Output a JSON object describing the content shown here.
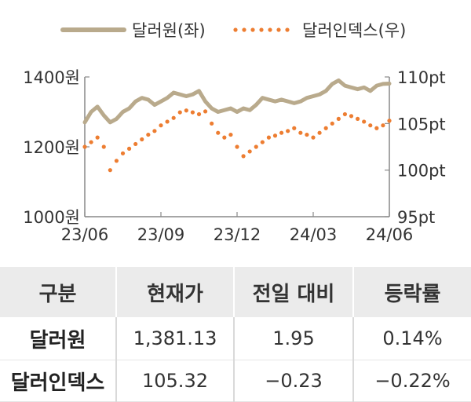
{
  "chart_data": {
    "type": "line",
    "x_ticks": [
      "23/06",
      "23/09",
      "23/12",
      "24/03",
      "24/06"
    ],
    "y_left": {
      "ylim": [
        1000,
        1400
      ],
      "ticks": [
        "1400원",
        "1200원",
        "1000원"
      ]
    },
    "y_right": {
      "ylim": [
        95,
        110
      ],
      "ticks": [
        "110pt",
        "105pt",
        "100pt",
        "95pt"
      ]
    },
    "legend_position": "top",
    "series": [
      {
        "name": "달러원(좌)",
        "axis": "left",
        "style": "solid",
        "color": "#b9aa8c",
        "points": [
          [
            "23/06",
            1270
          ],
          [
            "23/06",
            1300
          ],
          [
            "23/06",
            1315
          ],
          [
            "23/06",
            1290
          ],
          [
            "23/07",
            1270
          ],
          [
            "23/07",
            1280
          ],
          [
            "23/07",
            1300
          ],
          [
            "23/07",
            1310
          ],
          [
            "23/08",
            1330
          ],
          [
            "23/08",
            1340
          ],
          [
            "23/08",
            1335
          ],
          [
            "23/08",
            1320
          ],
          [
            "23/09",
            1330
          ],
          [
            "23/09",
            1340
          ],
          [
            "23/09",
            1355
          ],
          [
            "23/09",
            1350
          ],
          [
            "23/10",
            1345
          ],
          [
            "23/10",
            1350
          ],
          [
            "23/10",
            1360
          ],
          [
            "23/10",
            1330
          ],
          [
            "23/11",
            1310
          ],
          [
            "23/11",
            1300
          ],
          [
            "23/11",
            1305
          ],
          [
            "23/11",
            1310
          ],
          [
            "23/12",
            1300
          ],
          [
            "23/12",
            1310
          ],
          [
            "23/12",
            1305
          ],
          [
            "23/12",
            1320
          ],
          [
            "24/01",
            1340
          ],
          [
            "24/01",
            1335
          ],
          [
            "24/01",
            1330
          ],
          [
            "24/01",
            1335
          ],
          [
            "24/02",
            1330
          ],
          [
            "24/02",
            1325
          ],
          [
            "24/02",
            1330
          ],
          [
            "24/02",
            1340
          ],
          [
            "24/03",
            1345
          ],
          [
            "24/03",
            1350
          ],
          [
            "24/03",
            1360
          ],
          [
            "24/03",
            1380
          ],
          [
            "24/04",
            1390
          ],
          [
            "24/04",
            1375
          ],
          [
            "24/04",
            1370
          ],
          [
            "24/04",
            1365
          ],
          [
            "24/05",
            1370
          ],
          [
            "24/05",
            1360
          ],
          [
            "24/05",
            1375
          ],
          [
            "24/05",
            1380
          ],
          [
            "24/06",
            1381
          ]
        ]
      },
      {
        "name": "달러인덱스(우)",
        "axis": "right",
        "style": "dotted",
        "color": "#ed7d31",
        "points": [
          [
            "23/06",
            102.5
          ],
          [
            "23/06",
            103
          ],
          [
            "23/06",
            103.5
          ],
          [
            "23/06",
            102.5
          ],
          [
            "23/07",
            100
          ],
          [
            "23/07",
            101
          ],
          [
            "23/07",
            101.8
          ],
          [
            "23/07",
            102.3
          ],
          [
            "23/08",
            102.8
          ],
          [
            "23/08",
            103.3
          ],
          [
            "23/08",
            103.8
          ],
          [
            "23/08",
            104.2
          ],
          [
            "23/09",
            104.8
          ],
          [
            "23/09",
            105.2
          ],
          [
            "23/09",
            105.6
          ],
          [
            "23/09",
            106.2
          ],
          [
            "23/10",
            106.4
          ],
          [
            "23/10",
            106.2
          ],
          [
            "23/10",
            106
          ],
          [
            "23/10",
            106.3
          ],
          [
            "23/11",
            105
          ],
          [
            "23/11",
            104
          ],
          [
            "23/11",
            103.5
          ],
          [
            "23/11",
            103.8
          ],
          [
            "23/12",
            102.5
          ],
          [
            "23/12",
            101.5
          ],
          [
            "23/12",
            102
          ],
          [
            "23/12",
            102.5
          ],
          [
            "24/01",
            103
          ],
          [
            "24/01",
            103.5
          ],
          [
            "24/01",
            103.7
          ],
          [
            "24/01",
            104
          ],
          [
            "24/02",
            104.2
          ],
          [
            "24/02",
            104.5
          ],
          [
            "24/02",
            104
          ],
          [
            "24/02",
            103.8
          ],
          [
            "24/03",
            103.5
          ],
          [
            "24/03",
            104
          ],
          [
            "24/03",
            104.5
          ],
          [
            "24/03",
            105
          ],
          [
            "24/04",
            105.5
          ],
          [
            "24/04",
            106
          ],
          [
            "24/04",
            105.8
          ],
          [
            "24/04",
            105.5
          ],
          [
            "24/05",
            105.2
          ],
          [
            "24/05",
            104.8
          ],
          [
            "24/05",
            104.5
          ],
          [
            "24/05",
            104.8
          ],
          [
            "24/06",
            105.3
          ]
        ]
      }
    ]
  },
  "table": {
    "headers": [
      "구분",
      "현재가",
      "전일 대비",
      "등락률"
    ],
    "rows": [
      [
        "달러원",
        "1,381.13",
        "1.95",
        "0.14%"
      ],
      [
        "달러인덱스",
        "105.32",
        "−0.23",
        "−0.22%"
      ]
    ]
  }
}
